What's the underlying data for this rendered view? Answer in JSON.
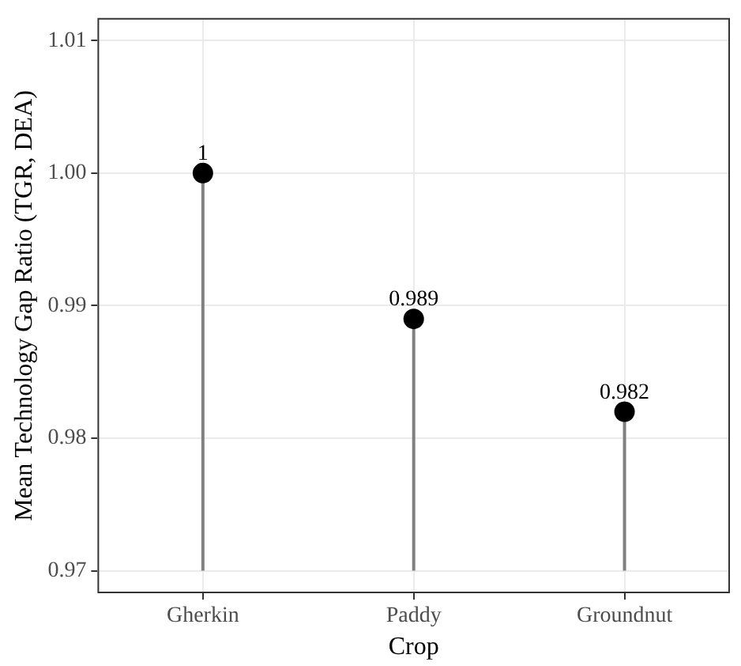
{
  "chart_data": {
    "type": "lollipop",
    "xlabel": "Crop",
    "ylabel": "Mean Technology Gap Ratio (TGR, DEA)",
    "categories": [
      "Gherkin",
      "Paddy",
      "Groundnut"
    ],
    "values": [
      1,
      0.989,
      0.982
    ],
    "color": "#000000",
    "ylim": [
      0.9683,
      1.0117
    ],
    "yticks": [
      {
        "value": 0.97,
        "label": "0.97"
      },
      {
        "value": 0.98,
        "label": "0.98"
      },
      {
        "value": 0.99,
        "label": "0.99"
      },
      {
        "value": 1,
        "label": "1.00"
      },
      {
        "value": 1.01,
        "label": "1.01"
      }
    ],
    "grid": true,
    "data_labels": true,
    "marker": "circle"
  }
}
